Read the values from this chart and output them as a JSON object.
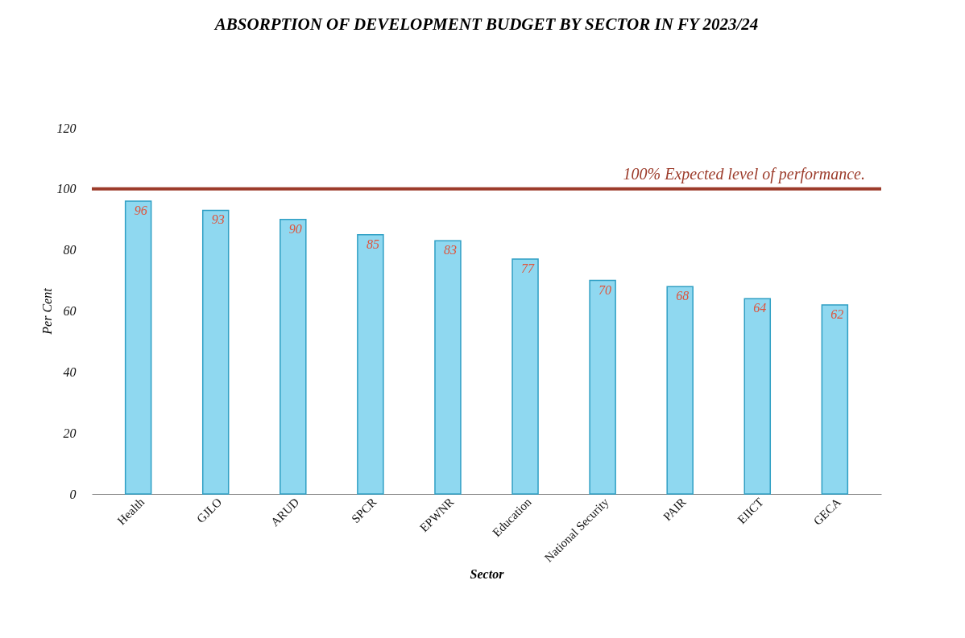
{
  "chart_data": {
    "type": "bar",
    "title": "ABSORPTION OF DEVELOPMENT BUDGET BY SECTOR IN FY 2023/24",
    "xlabel": "Sector",
    "ylabel": "Per Cent",
    "categories": [
      "Health",
      "GJLO",
      "ARUD",
      "SPCR",
      "EPWNR",
      "Education",
      "National Security",
      "PAIR",
      "EIICT",
      "GECA"
    ],
    "values": [
      96,
      93,
      90,
      85,
      83,
      77,
      70,
      68,
      64,
      62
    ],
    "color": "#8fd8f0",
    "ylim": [
      0,
      120
    ],
    "yticks": [
      0,
      20,
      40,
      60,
      80,
      100,
      120
    ],
    "data_labels": true,
    "ref_lines": [
      {
        "axis": "y",
        "value": 100,
        "label": "100% Expected level of performance.",
        "color": "#9c3b2a"
      }
    ]
  }
}
